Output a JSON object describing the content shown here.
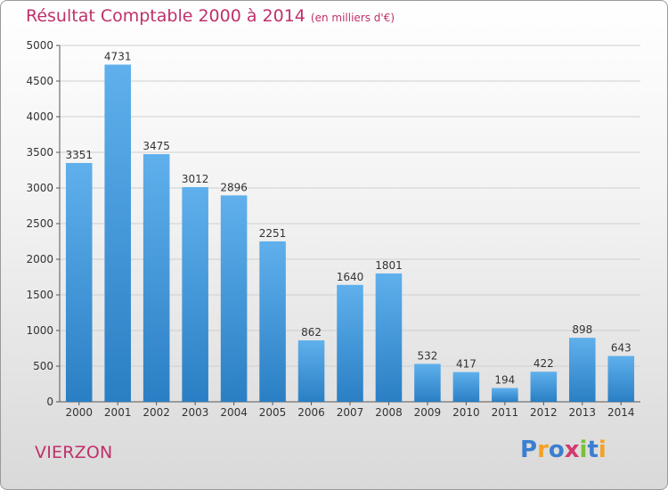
{
  "title": "Résultat Comptable 2000 à 2014",
  "subtitle": "(en milliers d'€)",
  "place": "VIERZON",
  "logo": {
    "text": "Proxiti",
    "letters": [
      "P",
      "r",
      "o",
      "x",
      "i",
      "t",
      "i"
    ],
    "colors": [
      "#3a7fd0",
      "#f2a227",
      "#3a7fd0",
      "#d43a6e",
      "#7bbf3a",
      "#3a7fd0",
      "#f2a227"
    ]
  },
  "colors": {
    "accent": "#c0306a",
    "bar_top": "#5fb0ec",
    "bar_bottom": "#2a7fc4"
  },
  "chart_data": {
    "type": "bar",
    "categories": [
      "2000",
      "2001",
      "2002",
      "2003",
      "2004",
      "2005",
      "2006",
      "2007",
      "2008",
      "2009",
      "2010",
      "2011",
      "2012",
      "2013",
      "2014"
    ],
    "values": [
      3351,
      4731,
      3475,
      3012,
      2896,
      2251,
      862,
      1640,
      1801,
      532,
      417,
      194,
      422,
      898,
      643
    ],
    "ylim": [
      0,
      5000
    ],
    "yticks": [
      0,
      500,
      1000,
      1500,
      2000,
      2500,
      3000,
      3500,
      4000,
      4500,
      5000
    ],
    "grid": true,
    "data_labels": true
  }
}
